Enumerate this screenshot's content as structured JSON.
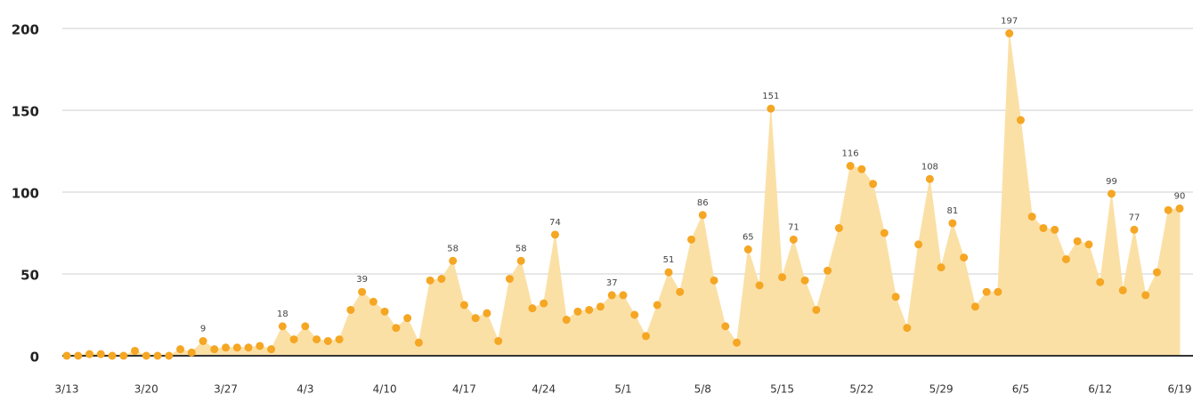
{
  "chart_data": {
    "type": "area",
    "categories": [
      "3/13",
      null,
      null,
      null,
      null,
      null,
      null,
      "3/20",
      null,
      null,
      null,
      null,
      null,
      null,
      "3/27",
      null,
      null,
      null,
      null,
      null,
      null,
      "4/3",
      null,
      null,
      null,
      null,
      null,
      null,
      "4/10",
      null,
      null,
      null,
      null,
      null,
      null,
      "4/17",
      null,
      null,
      null,
      null,
      null,
      null,
      "4/24",
      null,
      null,
      null,
      null,
      null,
      null,
      "5/1",
      null,
      null,
      null,
      null,
      null,
      null,
      "5/8",
      null,
      null,
      null,
      null,
      null,
      null,
      "5/15",
      null,
      null,
      null,
      null,
      null,
      null,
      "5/22",
      null,
      null,
      null,
      null,
      null,
      null,
      "5/29",
      null,
      null,
      null,
      null,
      null,
      null,
      "6/5",
      null,
      null,
      null,
      null,
      null,
      null,
      "6/12",
      null,
      null,
      null,
      null,
      null,
      null,
      "6/19"
    ],
    "values": [
      0,
      0,
      1,
      1,
      0,
      0,
      3,
      0,
      0,
      0,
      4,
      2,
      9,
      4,
      5,
      5,
      5,
      6,
      4,
      18,
      10,
      18,
      10,
      9,
      10,
      28,
      39,
      33,
      27,
      17,
      23,
      8,
      46,
      47,
      58,
      31,
      23,
      26,
      9,
      47,
      58,
      29,
      32,
      74,
      22,
      27,
      28,
      30,
      37,
      37,
      25,
      12,
      31,
      51,
      39,
      71,
      86,
      46,
      18,
      8,
      65,
      43,
      151,
      48,
      71,
      46,
      28,
      52,
      78,
      116,
      114,
      105,
      75,
      36,
      17,
      68,
      108,
      54,
      81,
      60,
      30,
      39,
      39,
      197,
      144,
      85,
      78,
      77,
      59,
      70,
      68,
      45,
      99,
      40,
      77,
      37,
      51,
      89,
      90
    ],
    "value_labels": [
      null,
      null,
      null,
      null,
      null,
      null,
      null,
      null,
      null,
      null,
      null,
      null,
      "9",
      null,
      null,
      null,
      null,
      null,
      null,
      "18",
      null,
      null,
      null,
      null,
      null,
      null,
      "39",
      null,
      null,
      null,
      null,
      null,
      null,
      null,
      "58",
      null,
      null,
      null,
      null,
      null,
      "58",
      null,
      null,
      "74",
      null,
      null,
      null,
      null,
      "37",
      null,
      null,
      null,
      null,
      "51",
      null,
      null,
      "86",
      null,
      null,
      null,
      "65",
      null,
      "151",
      null,
      "71",
      null,
      null,
      null,
      null,
      "116",
      null,
      null,
      null,
      null,
      null,
      null,
      "108",
      null,
      "81",
      null,
      null,
      null,
      null,
      "197",
      null,
      null,
      null,
      null,
      null,
      null,
      null,
      null,
      "99",
      null,
      "77",
      null,
      null,
      null,
      "90"
    ],
    "color": "#f5a623",
    "area_color": "#fbe0a6",
    "ylim": [
      0,
      200
    ],
    "yticks": [
      0,
      50,
      100,
      150,
      200
    ],
    "grid": true
  }
}
